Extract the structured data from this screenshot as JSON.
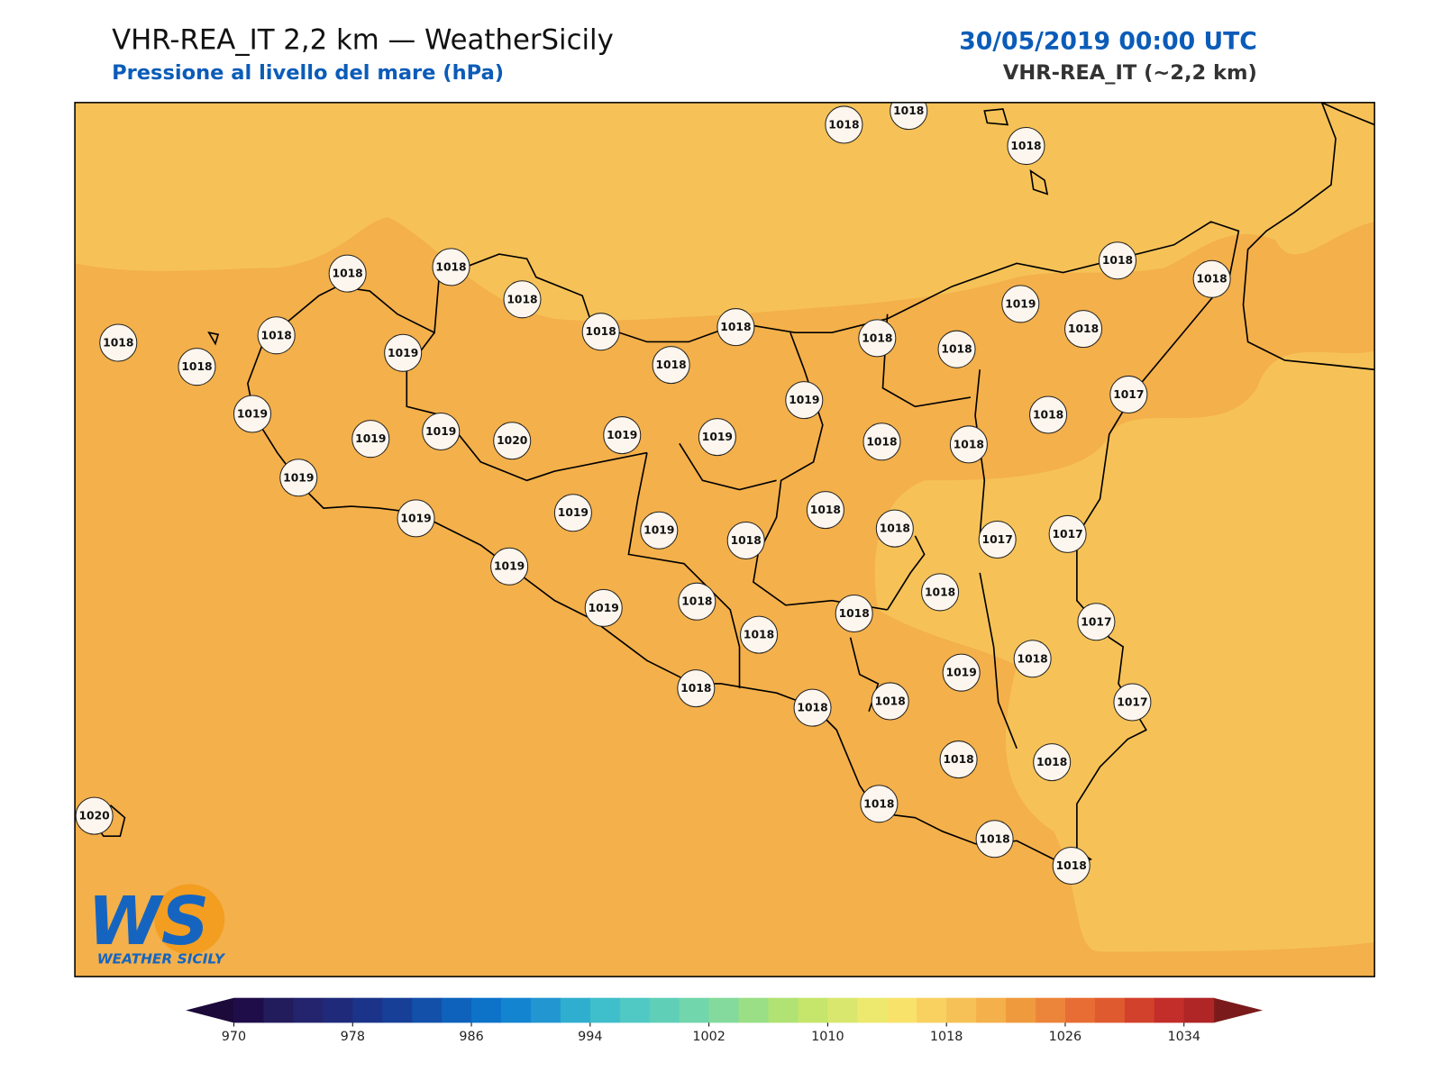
{
  "header": {
    "title": "VHR-REA_IT 2,2 km — WeatherSicily",
    "subtitle": "Pressione al livello del mare (hPa)",
    "datetime": "30/05/2019 00:00 UTC",
    "model": "VHR-REA_IT (~2,2 km)"
  },
  "map": {
    "stations": [
      1018,
      1018,
      1018,
      1018,
      1018,
      1018,
      1018,
      1018,
      1018,
      1018,
      1018,
      1019,
      1018,
      1018,
      1018,
      1018,
      1018,
      1018,
      1019,
      1019,
      1019,
      1019,
      1020,
      1019,
      1019,
      1019,
      1018,
      1018,
      1017,
      1018,
      1019,
      1019,
      1019,
      1019,
      1018,
      1018,
      1018,
      1017,
      1017,
      1019,
      1019,
      1018,
      1018,
      1018,
      1018,
      1017,
      1019,
      1018,
      1018,
      1018,
      1018,
      1017,
      1018,
      1018,
      1018,
      1018,
      1018,
      1020
    ],
    "colorbar": {
      "range": [
        970,
        1036
      ],
      "ticks": [
        970,
        978,
        986,
        994,
        1002,
        1010,
        1018,
        1026,
        1034
      ],
      "colors": [
        "#1f0d4a",
        "#221c5c",
        "#24236e",
        "#202a7a",
        "#1b3388",
        "#173f98",
        "#1250aa",
        "#0e62bc",
        "#0c73c8",
        "#1384cf",
        "#2196d0",
        "#30aecf",
        "#3fbecb",
        "#50c8c3",
        "#5fcfb8",
        "#72d6ad",
        "#84da9c",
        "#9adf86",
        "#b0e274",
        "#c5e56b",
        "#d9e76e",
        "#ece96e",
        "#f8e26a",
        "#f8d160",
        "#f6c257",
        "#f4b04a",
        "#f09a3e",
        "#ec853a",
        "#e86d35",
        "#e05a30",
        "#d2412c",
        "#c32d2a",
        "#b02526"
      ],
      "under_color": "#1b0a3a",
      "over_color": "#7a1a1a"
    }
  },
  "logo": {
    "mark": "WS",
    "name": "WEATHER SICILY"
  }
}
